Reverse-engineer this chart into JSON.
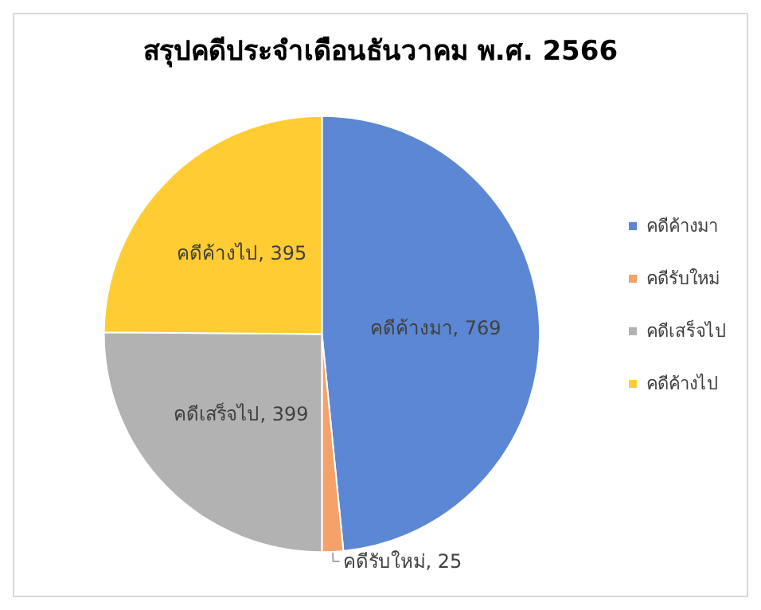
{
  "chart_data": {
    "type": "pie",
    "title": "สรุปคดีประจำเดือนธันวาคม พ.ศ. 2566",
    "categories": [
      "คดีค้างมา",
      "คดีรับใหม่",
      "คดีเสร็จไป",
      "คดีค้างไป"
    ],
    "values": [
      769,
      25,
      399,
      395
    ],
    "colors": [
      "#5b87d4",
      "#f4a26a",
      "#b2b2b2",
      "#ffcc33"
    ],
    "value_labels": [
      "คดีค้างมา, 769",
      "คดีรับใหม่, 25",
      "คดีเสร็จไป, 399",
      "คดีค้างไป, 395"
    ],
    "legend": "right"
  }
}
